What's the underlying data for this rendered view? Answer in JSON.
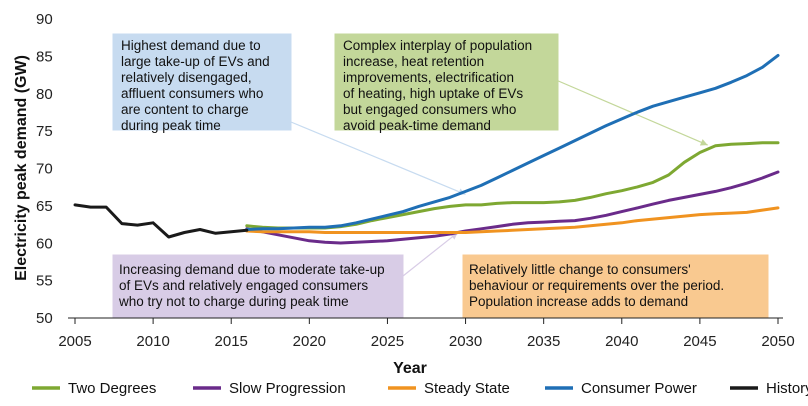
{
  "chart_data": {
    "type": "line",
    "xlabel": "Year",
    "ylabel": "Electricity peak demand (GW)",
    "xlim": [
      2005,
      2050
    ],
    "ylim": [
      50,
      90
    ],
    "xticks": [
      2005,
      2010,
      2015,
      2020,
      2025,
      2030,
      2035,
      2040,
      2045,
      2050
    ],
    "yticks": [
      50,
      55,
      60,
      65,
      70,
      75,
      80,
      85,
      90
    ],
    "grid": false,
    "legend_position": "bottom",
    "series": [
      {
        "name": "Two Degrees",
        "color": "#7ea832",
        "x": [
          2016,
          2017,
          2018,
          2019,
          2020,
          2021,
          2022,
          2023,
          2024,
          2025,
          2026,
          2027,
          2028,
          2029,
          2030,
          2031,
          2032,
          2033,
          2034,
          2035,
          2036,
          2037,
          2038,
          2039,
          2040,
          2041,
          2042,
          2043,
          2044,
          2045,
          2046,
          2047,
          2048,
          2049,
          2050
        ],
        "values": [
          62.2,
          62.0,
          61.9,
          61.9,
          61.9,
          61.9,
          62.1,
          62.4,
          62.9,
          63.3,
          63.7,
          64.1,
          64.5,
          64.8,
          65.0,
          65.0,
          65.2,
          65.3,
          65.3,
          65.3,
          65.4,
          65.6,
          66.0,
          66.5,
          66.9,
          67.4,
          68.0,
          69.0,
          70.7,
          72.0,
          72.9,
          73.1,
          73.2,
          73.3,
          73.3
        ]
      },
      {
        "name": "Slow Progression",
        "color": "#6a2b8a",
        "x": [
          2016,
          2017,
          2018,
          2019,
          2020,
          2021,
          2022,
          2023,
          2024,
          2025,
          2026,
          2027,
          2028,
          2029,
          2030,
          2031,
          2032,
          2033,
          2034,
          2035,
          2036,
          2037,
          2038,
          2039,
          2040,
          2041,
          2042,
          2043,
          2044,
          2045,
          2046,
          2047,
          2048,
          2049,
          2050
        ],
        "values": [
          61.8,
          61.4,
          61.0,
          60.6,
          60.2,
          60.0,
          59.9,
          60.0,
          60.1,
          60.2,
          60.4,
          60.6,
          60.8,
          61.1,
          61.5,
          61.8,
          62.1,
          62.4,
          62.6,
          62.7,
          62.8,
          62.9,
          63.2,
          63.6,
          64.1,
          64.6,
          65.1,
          65.6,
          66.0,
          66.4,
          66.8,
          67.3,
          67.9,
          68.6,
          69.4
        ]
      },
      {
        "name": "Steady State",
        "color": "#f09320",
        "x": [
          2016,
          2017,
          2018,
          2019,
          2020,
          2021,
          2022,
          2023,
          2024,
          2025,
          2026,
          2027,
          2028,
          2029,
          2030,
          2031,
          2032,
          2033,
          2034,
          2035,
          2036,
          2037,
          2038,
          2039,
          2040,
          2041,
          2042,
          2043,
          2044,
          2045,
          2046,
          2047,
          2048,
          2049,
          2050
        ],
        "values": [
          61.5,
          61.4,
          61.4,
          61.4,
          61.4,
          61.3,
          61.3,
          61.3,
          61.3,
          61.3,
          61.3,
          61.3,
          61.3,
          61.3,
          61.3,
          61.4,
          61.5,
          61.6,
          61.7,
          61.8,
          61.9,
          62.0,
          62.2,
          62.4,
          62.6,
          62.9,
          63.1,
          63.3,
          63.5,
          63.7,
          63.8,
          63.9,
          64.0,
          64.3,
          64.6
        ]
      },
      {
        "name": "Consumer Power",
        "color": "#1f6fb5",
        "x": [
          2016,
          2017,
          2018,
          2019,
          2020,
          2021,
          2022,
          2023,
          2024,
          2025,
          2026,
          2027,
          2028,
          2029,
          2030,
          2031,
          2032,
          2033,
          2034,
          2035,
          2036,
          2037,
          2038,
          2039,
          2040,
          2041,
          2042,
          2043,
          2044,
          2045,
          2046,
          2047,
          2048,
          2049,
          2050
        ],
        "values": [
          61.7,
          61.8,
          61.8,
          61.9,
          62.0,
          62.0,
          62.2,
          62.6,
          63.1,
          63.6,
          64.1,
          64.8,
          65.4,
          66.0,
          66.8,
          67.6,
          68.6,
          69.6,
          70.6,
          71.6,
          72.6,
          73.6,
          74.6,
          75.6,
          76.5,
          77.4,
          78.2,
          78.8,
          79.4,
          80.0,
          80.6,
          81.4,
          82.3,
          83.4,
          85.0
        ]
      },
      {
        "name": "History",
        "color": "#1a1a1a",
        "x": [
          2005,
          2006,
          2007,
          2008,
          2009,
          2010,
          2011,
          2012,
          2013,
          2014,
          2015,
          2016
        ],
        "values": [
          65.0,
          64.7,
          64.7,
          62.5,
          62.3,
          62.6,
          60.7,
          61.3,
          61.7,
          61.2,
          61.4,
          61.6
        ]
      }
    ],
    "annotations": [
      {
        "id": "consumer-power-note",
        "lines": [
          "Highest demand due to",
          "large take-up of EVs and",
          "relatively disengaged,",
          "affluent consumers who",
          "are content to charge",
          "during peak time"
        ],
        "bg": "#c7dbf0",
        "border": "#c7dbf0",
        "arrow_color": "#c7dbf0",
        "arrow_to": [
          2030,
          66.4
        ]
      },
      {
        "id": "two-degrees-note",
        "lines": [
          "Complex interplay of population",
          "increase, heat retention",
          "improvements, electrification",
          "of heating, high uptake of EVs",
          "but engaged consumers who",
          "avoid peak-time demand"
        ],
        "bg": "#c3d79a",
        "border": "#c3d79a",
        "arrow_color": "#c3d79a",
        "arrow_to": [
          2045.5,
          73
        ]
      },
      {
        "id": "slow-progression-note",
        "lines": [
          "Increasing demand due to moderate take-up",
          "of EVs and relatively engaged consumers",
          "who try not to charge during peak time"
        ],
        "bg": "#d8cce6",
        "border": "#d8cce6",
        "arrow_color": "#d8cce6",
        "arrow_to": [
          2029.5,
          61.3
        ]
      },
      {
        "id": "steady-state-note",
        "lines": [
          "Relatively little change to consumers'",
          "behaviour or requirements over the period.",
          "Population increase adds to demand"
        ],
        "bg": "#f9c990",
        "border": "#f9c990",
        "arrow_color": null,
        "arrow_to": null
      }
    ]
  }
}
